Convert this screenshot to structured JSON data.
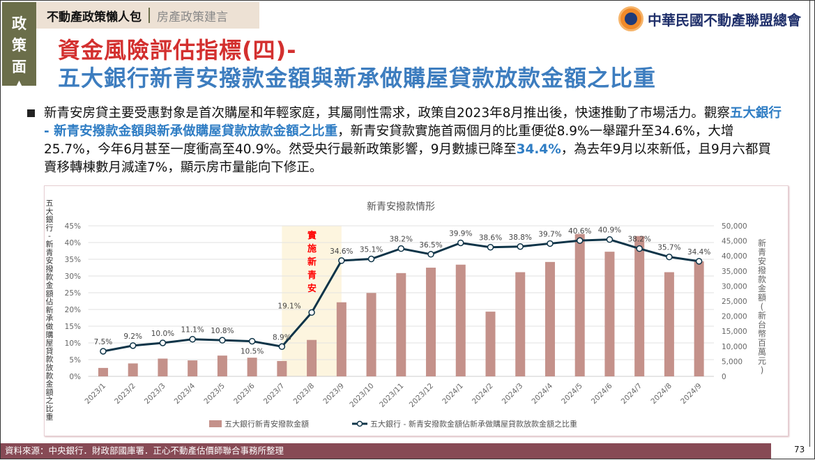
{
  "side_tab": {
    "chars": [
      "政",
      "策",
      "面"
    ],
    "arrow": "▲"
  },
  "top_tab": {
    "primary": "不動產政策懶人包",
    "secondary": "房產政策建言"
  },
  "title": {
    "line1": "資金風險評估指標(四)-",
    "line2": "五大銀行新青安撥款金額與新承做購屋貸款放款金額之比重"
  },
  "logo": {
    "name": "中華民國不動產聯盟總會"
  },
  "paragraph": {
    "p1": "新青安房貸主要受惠對象是首次購屋和年輕家庭，其屬剛性需求，政策自2023年8月推出後，快速推動了市場活力。觀察",
    "h1": "五大銀行 - 新青安撥款金額與新承做購屋貸款放款金額之比重",
    "p2": "，新青安貸款實施首兩個月的比重便從8.9%一舉躍升至34.6%，大增25.7%，今年6月甚至一度衝高至40.9%。然受央行最新政策影響，9月數據已降至",
    "h2": "34.4%",
    "p3": "，為去年9月以來新低，且9月六都買賣移轉棟數月減達7%，顯示房市量能向下修正。"
  },
  "chart_data": {
    "type": "bar+line",
    "title": "新青安撥款情形",
    "ylabel_left": "五大銀行-新青安撥款金額佔新承做購屋貸款放款金額之比重",
    "ylabel_right": "新青安撥款金額(新台幣百萬元)",
    "annotation": "實施新青安",
    "categories": [
      "2023/1",
      "2023/2",
      "2023/3",
      "2023/4",
      "2023/5",
      "2023/6",
      "2023/7",
      "2023/8",
      "2023/9",
      "2023/10",
      "2023/11",
      "2023/12",
      "2024/1",
      "2024/2",
      "2024/3",
      "2024/4",
      "2024/5",
      "2024/6",
      "2024/7",
      "2024/8",
      "2024/9"
    ],
    "left_ticks": [
      "0%",
      "5%",
      "10%",
      "15%",
      "20%",
      "25%",
      "30%",
      "35%",
      "40%",
      "45%"
    ],
    "right_ticks": [
      "0",
      "5,000",
      "10,000",
      "15,000",
      "20,000",
      "25,000",
      "30,000",
      "35,000",
      "40,000",
      "45,000",
      "50,000"
    ],
    "ylim_left": [
      0,
      45
    ],
    "ylim_right": [
      0,
      50000
    ],
    "series": [
      {
        "name": "五大銀行新青安撥款金額",
        "type": "bar",
        "axis": "right",
        "color": "#c4918a",
        "values": [
          2800,
          4300,
          5900,
          5300,
          6900,
          6200,
          5100,
          12100,
          24600,
          27700,
          34300,
          36100,
          37100,
          21500,
          34600,
          38000,
          47300,
          41400,
          46600,
          34600,
          38200
        ]
      },
      {
        "name": "五大銀行 - 新青安撥款金額佔新承做購屋貸款放款金額之比重",
        "type": "line",
        "axis": "left",
        "color": "#0e3448",
        "values": [
          7.5,
          9.2,
          10.0,
          11.1,
          10.8,
          10.5,
          8.9,
          19.1,
          34.6,
          35.1,
          38.2,
          36.5,
          39.9,
          38.6,
          38.8,
          39.7,
          40.6,
          40.9,
          38.2,
          35.7,
          34.4
        ],
        "labels": [
          "7.5%",
          "9.2%",
          "10.0%",
          "11.1%",
          "10.8%",
          "10.5%",
          "8.9%",
          "19.1%",
          "34.6%",
          "35.1%",
          "38.2%",
          "36.5%",
          "39.9%",
          "38.6%",
          "38.8%",
          "39.7%",
          "40.6%",
          "40.9%",
          "38.2%",
          "35.7%",
          "34.4%"
        ]
      }
    ],
    "highlight_range": [
      "2023/7",
      "2023/9"
    ],
    "legend_position": "bottom"
  },
  "footer": {
    "source": "資料來源：中央銀行．財政部國庫署．正心不動產估價師聯合事務所整理",
    "page": "73"
  }
}
